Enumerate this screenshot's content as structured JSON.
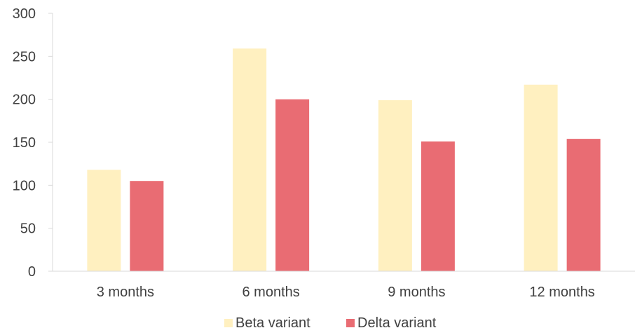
{
  "chart_data": {
    "type": "bar",
    "categories": [
      "3 months",
      "6 months",
      "9 months",
      "12 months"
    ],
    "series": [
      {
        "name": "Beta variant",
        "values": [
          118,
          259,
          199,
          217
        ],
        "color": "#FFF0C0"
      },
      {
        "name": "Delta variant",
        "values": [
          105,
          200,
          151,
          154
        ],
        "color": "#E96C73"
      }
    ],
    "ylim": [
      0,
      300
    ],
    "yticks": [
      "0",
      "50",
      "100",
      "150",
      "200",
      "250",
      "300"
    ],
    "grid": false,
    "legend": "bottom",
    "axis_color": "#D9D9D9",
    "text_color": "#404040"
  }
}
